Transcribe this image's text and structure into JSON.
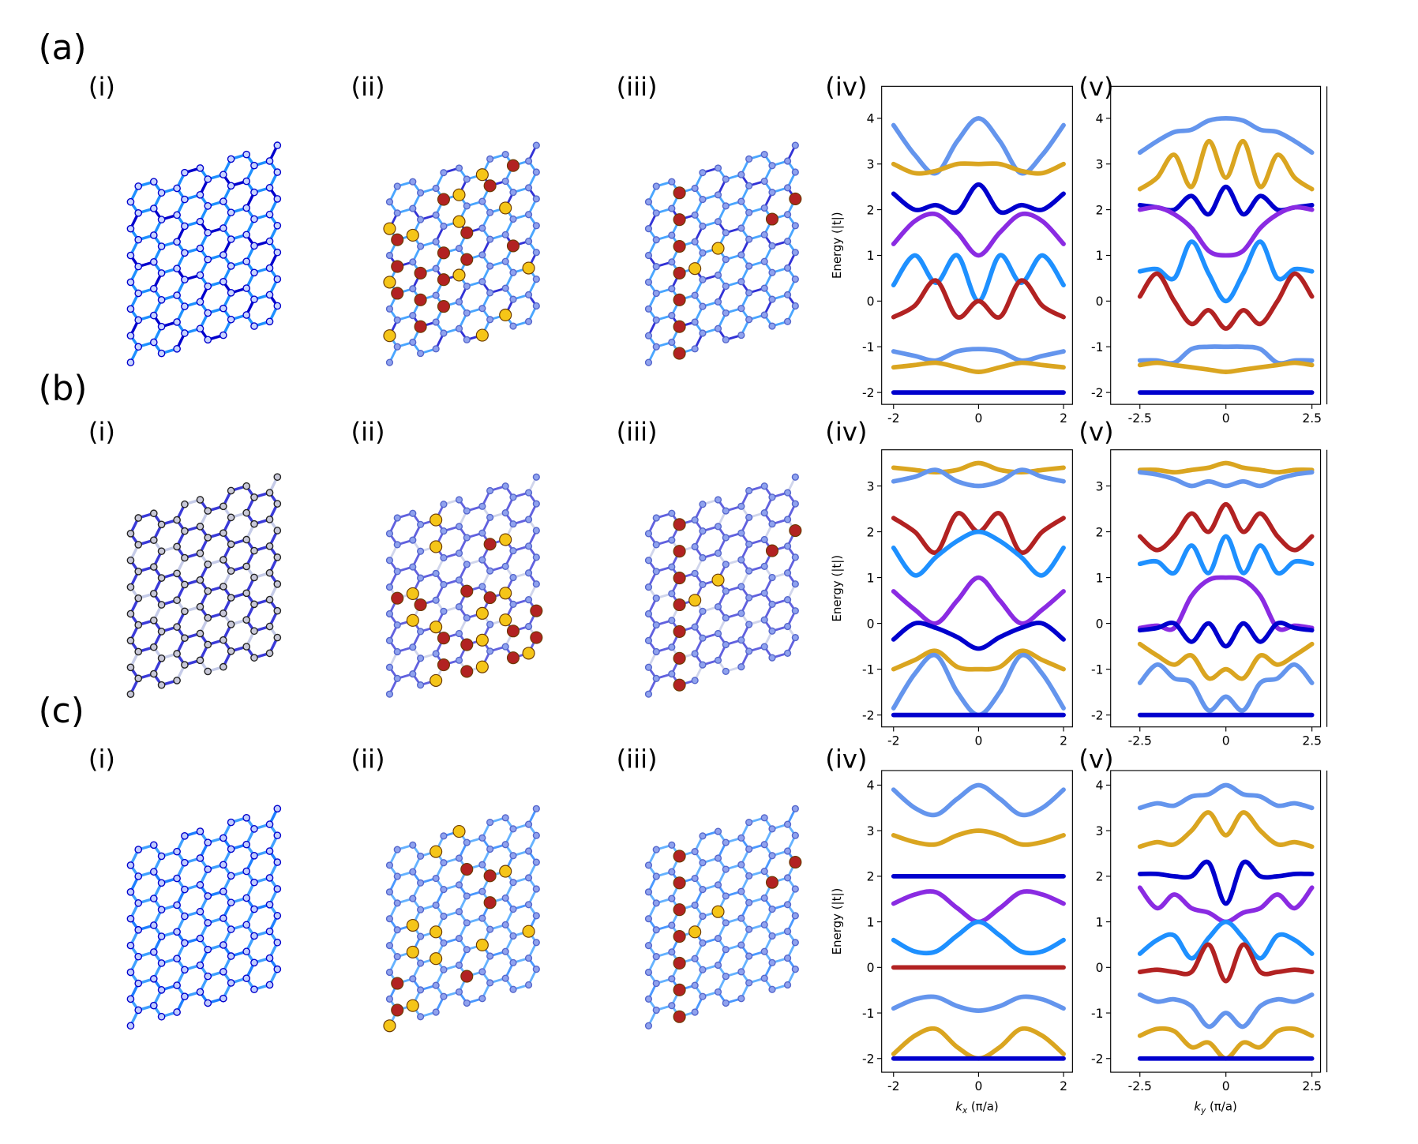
{
  "labels": {
    "rows": [
      "(a)",
      "(b)",
      "(c)"
    ],
    "panels": [
      "(i)",
      "(ii)",
      "(iii)",
      "(iv)",
      "(v)"
    ]
  },
  "chart_data": [
    {
      "type": "line",
      "ylabel": "Energy (|t|)",
      "x": [
        -2,
        -1.5,
        -1,
        -0.5,
        0,
        0.5,
        1,
        1.5,
        2
      ],
      "xlim": [
        -2.28,
        2.21
      ],
      "ylim": [
        -2.26,
        4.7
      ],
      "xticks": [
        -2,
        0,
        2
      ],
      "yticks": [
        -2,
        -1,
        0,
        1,
        2,
        3,
        4
      ],
      "series": [
        {
          "color": "#6495ed",
          "values": [
            3.85,
            3.2,
            2.8,
            3.5,
            4.0,
            3.5,
            2.8,
            3.2,
            3.85
          ]
        },
        {
          "color": "#daa520",
          "values": [
            3.0,
            2.8,
            2.85,
            3.0,
            3.0,
            3.0,
            2.85,
            2.8,
            3.0
          ]
        },
        {
          "color": "#0000cd",
          "values": [
            2.35,
            2.0,
            2.1,
            1.95,
            2.55,
            1.95,
            2.1,
            2.0,
            2.35
          ]
        },
        {
          "color": "#8a2be2",
          "values": [
            1.25,
            1.75,
            1.9,
            1.5,
            1.0,
            1.5,
            1.9,
            1.75,
            1.25
          ]
        },
        {
          "color": "#1e90ff",
          "values": [
            0.35,
            1.0,
            0.4,
            1.0,
            0.0,
            1.0,
            0.4,
            1.0,
            0.35
          ]
        },
        {
          "color": "#b22222",
          "values": [
            -0.35,
            -0.1,
            0.45,
            -0.35,
            0.0,
            -0.35,
            0.45,
            -0.1,
            -0.35
          ]
        },
        {
          "color": "#6495ed",
          "values": [
            -1.1,
            -1.2,
            -1.3,
            -1.1,
            -1.05,
            -1.1,
            -1.3,
            -1.2,
            -1.1
          ]
        },
        {
          "color": "#daa520",
          "values": [
            -1.45,
            -1.4,
            -1.35,
            -1.45,
            -1.55,
            -1.45,
            -1.35,
            -1.4,
            -1.45
          ]
        },
        {
          "color": "#0000cd",
          "values": [
            -2,
            -2,
            -2,
            -2,
            -2,
            -2,
            -2,
            -2,
            -2
          ]
        }
      ]
    },
    {
      "type": "line",
      "x": [
        -2.5,
        -2,
        -1.5,
        -1,
        -0.5,
        0,
        0.5,
        1,
        1.5,
        2,
        2.5
      ],
      "xlim": [
        -3.35,
        2.75
      ],
      "ylim": [
        -2.26,
        4.7
      ],
      "xticks": [
        -2.5,
        0,
        2.5
      ],
      "yticks": [
        -2,
        -1,
        0,
        1,
        2,
        3,
        4
      ],
      "series": [
        {
          "color": "#6495ed",
          "values": [
            3.25,
            3.5,
            3.7,
            3.75,
            3.95,
            4.0,
            3.95,
            3.75,
            3.7,
            3.5,
            3.25
          ]
        },
        {
          "color": "#daa520",
          "values": [
            2.45,
            2.7,
            3.2,
            2.5,
            3.5,
            2.7,
            3.5,
            2.5,
            3.2,
            2.7,
            2.45
          ]
        },
        {
          "color": "#0000cd",
          "values": [
            2.1,
            2.05,
            2.0,
            2.3,
            1.9,
            2.5,
            1.9,
            2.3,
            2.0,
            2.05,
            2.1
          ]
        },
        {
          "color": "#8a2be2",
          "values": [
            2.0,
            2.05,
            1.9,
            1.6,
            1.1,
            1.0,
            1.1,
            1.6,
            1.9,
            2.05,
            2.0
          ]
        },
        {
          "color": "#1e90ff",
          "values": [
            0.65,
            0.7,
            0.5,
            1.3,
            0.6,
            0.0,
            0.6,
            1.3,
            0.5,
            0.7,
            0.65
          ]
        },
        {
          "color": "#b22222",
          "values": [
            0.1,
            0.6,
            0.0,
            -0.5,
            -0.2,
            -0.6,
            -0.2,
            -0.5,
            0.0,
            0.6,
            0.1
          ]
        },
        {
          "color": "#6495ed",
          "values": [
            -1.3,
            -1.3,
            -1.35,
            -1.05,
            -1.0,
            -1.0,
            -1.0,
            -1.05,
            -1.35,
            -1.3,
            -1.3
          ]
        },
        {
          "color": "#daa520",
          "values": [
            -1.4,
            -1.35,
            -1.4,
            -1.45,
            -1.5,
            -1.55,
            -1.5,
            -1.45,
            -1.4,
            -1.35,
            -1.4
          ]
        },
        {
          "color": "#0000cd",
          "values": [
            -2,
            -2,
            -2,
            -2,
            -2,
            -2,
            -2,
            -2,
            -2,
            -2,
            -2
          ]
        }
      ]
    },
    {
      "type": "line",
      "ylabel": "Energy (|t|)",
      "x": [
        -2,
        -1.5,
        -1,
        -0.5,
        0,
        0.5,
        1,
        1.5,
        2
      ],
      "xlim": [
        -2.28,
        2.21
      ],
      "ylim": [
        -2.26,
        3.79
      ],
      "xticks": [
        -2,
        0,
        2
      ],
      "yticks": [
        -2,
        -1,
        0,
        1,
        2,
        3
      ],
      "series": [
        {
          "color": "#daa520",
          "values": [
            3.4,
            3.35,
            3.3,
            3.35,
            3.5,
            3.35,
            3.3,
            3.35,
            3.4
          ]
        },
        {
          "color": "#6495ed",
          "values": [
            3.1,
            3.2,
            3.35,
            3.1,
            3.0,
            3.1,
            3.35,
            3.2,
            3.1
          ]
        },
        {
          "color": "#b22222",
          "values": [
            2.3,
            2.0,
            1.55,
            2.4,
            2.0,
            2.4,
            1.55,
            2.0,
            2.3
          ]
        },
        {
          "color": "#1e90ff",
          "values": [
            1.65,
            1.05,
            1.45,
            1.8,
            2.0,
            1.8,
            1.45,
            1.05,
            1.65
          ]
        },
        {
          "color": "#8a2be2",
          "values": [
            0.7,
            0.3,
            0.0,
            0.5,
            1.0,
            0.5,
            0.0,
            0.3,
            0.7
          ]
        },
        {
          "color": "#0000cd",
          "values": [
            -0.35,
            0.0,
            -0.1,
            -0.3,
            -0.55,
            -0.3,
            -0.1,
            0.0,
            -0.35
          ]
        },
        {
          "color": "#daa520",
          "values": [
            -1.0,
            -0.8,
            -0.6,
            -0.95,
            -1.0,
            -0.95,
            -0.6,
            -0.8,
            -1.0
          ]
        },
        {
          "color": "#6495ed",
          "values": [
            -1.85,
            -1.1,
            -0.7,
            -1.5,
            -2.0,
            -1.5,
            -0.7,
            -1.1,
            -1.85
          ]
        },
        {
          "color": "#0000cd",
          "values": [
            -2,
            -2,
            -2,
            -2,
            -2,
            -2,
            -2,
            -2,
            -2
          ]
        }
      ]
    },
    {
      "type": "line",
      "x": [
        -2.5,
        -2,
        -1.5,
        -1,
        -0.5,
        0,
        0.5,
        1,
        1.5,
        2,
        2.5
      ],
      "xlim": [
        -3.35,
        2.75
      ],
      "ylim": [
        -2.26,
        3.79
      ],
      "xticks": [
        -2.5,
        0,
        2.5
      ],
      "yticks": [
        -2,
        -1,
        0,
        1,
        2,
        3
      ],
      "series": [
        {
          "color": "#daa520",
          "values": [
            3.35,
            3.35,
            3.3,
            3.35,
            3.4,
            3.5,
            3.4,
            3.35,
            3.3,
            3.35,
            3.35
          ]
        },
        {
          "color": "#6495ed",
          "values": [
            3.3,
            3.25,
            3.15,
            3.0,
            3.1,
            3.0,
            3.1,
            3.0,
            3.15,
            3.25,
            3.3
          ]
        },
        {
          "color": "#b22222",
          "values": [
            1.9,
            1.6,
            1.9,
            2.4,
            2.0,
            2.6,
            2.0,
            2.4,
            1.9,
            1.6,
            1.9
          ]
        },
        {
          "color": "#1e90ff",
          "values": [
            1.3,
            1.35,
            1.1,
            1.7,
            1.1,
            1.9,
            1.1,
            1.7,
            1.1,
            1.35,
            1.3
          ]
        },
        {
          "color": "#8a2be2",
          "values": [
            -0.1,
            -0.05,
            -0.1,
            0.6,
            0.95,
            1.0,
            0.95,
            0.6,
            -0.1,
            -0.05,
            -0.1
          ]
        },
        {
          "color": "#0000cd",
          "values": [
            -0.15,
            -0.1,
            0.0,
            -0.4,
            0.0,
            -0.5,
            0.0,
            -0.4,
            0.0,
            -0.1,
            -0.15
          ]
        },
        {
          "color": "#daa520",
          "values": [
            -0.45,
            -0.7,
            -0.9,
            -0.7,
            -1.2,
            -1.0,
            -1.2,
            -0.7,
            -0.9,
            -0.7,
            -0.45
          ]
        },
        {
          "color": "#6495ed",
          "values": [
            -1.3,
            -0.9,
            -1.2,
            -1.3,
            -1.9,
            -1.6,
            -1.9,
            -1.3,
            -1.2,
            -0.9,
            -1.3
          ]
        },
        {
          "color": "#0000cd",
          "values": [
            -2,
            -2,
            -2,
            -2,
            -2,
            -2,
            -2,
            -2,
            -2,
            -2,
            -2
          ]
        }
      ]
    },
    {
      "type": "line",
      "ylabel": "Energy (|t|)",
      "xlabel": {
        "symbol": "k",
        "subscript": "x",
        "unit": " (π/a)"
      },
      "x": [
        -2,
        -1.5,
        -1,
        -0.5,
        0,
        0.5,
        1,
        1.5,
        2
      ],
      "xlim": [
        -2.28,
        2.21
      ],
      "ylim": [
        -2.3,
        4.32
      ],
      "xticks": [
        -2,
        0,
        2
      ],
      "yticks": [
        -2,
        -1,
        0,
        1,
        2,
        3,
        4
      ],
      "series": [
        {
          "color": "#6495ed",
          "values": [
            3.9,
            3.5,
            3.35,
            3.7,
            4.0,
            3.7,
            3.35,
            3.5,
            3.9
          ]
        },
        {
          "color": "#daa520",
          "values": [
            2.9,
            2.75,
            2.7,
            2.9,
            3.0,
            2.9,
            2.7,
            2.75,
            2.9
          ]
        },
        {
          "color": "#0000cd",
          "values": [
            2,
            2,
            2,
            2,
            2,
            2,
            2,
            2,
            2
          ]
        },
        {
          "color": "#8a2be2",
          "values": [
            1.4,
            1.6,
            1.65,
            1.3,
            1.0,
            1.3,
            1.65,
            1.6,
            1.4
          ]
        },
        {
          "color": "#1e90ff",
          "values": [
            0.6,
            0.35,
            0.35,
            0.7,
            1.0,
            0.7,
            0.35,
            0.35,
            0.6
          ]
        },
        {
          "color": "#b22222",
          "values": [
            0,
            0,
            0,
            0,
            0,
            0,
            0,
            0,
            0
          ]
        },
        {
          "color": "#6495ed",
          "values": [
            -0.9,
            -0.7,
            -0.65,
            -0.85,
            -0.95,
            -0.85,
            -0.65,
            -0.7,
            -0.9
          ]
        },
        {
          "color": "#daa520",
          "values": [
            -1.9,
            -1.5,
            -1.35,
            -1.75,
            -2.0,
            -1.75,
            -1.35,
            -1.5,
            -1.9
          ]
        },
        {
          "color": "#0000cd",
          "values": [
            -2,
            -2,
            -2,
            -2,
            -2,
            -2,
            -2,
            -2,
            -2
          ]
        }
      ]
    },
    {
      "type": "line",
      "xlabel": {
        "symbol": "k",
        "subscript": "y",
        "unit": " (π/a)"
      },
      "x": [
        -2.5,
        -2,
        -1.5,
        -1,
        -0.5,
        0,
        0.5,
        1,
        1.5,
        2,
        2.5
      ],
      "xlim": [
        -3.35,
        2.75
      ],
      "ylim": [
        -2.3,
        4.32
      ],
      "xticks": [
        -2.5,
        0,
        2.5
      ],
      "yticks": [
        -2,
        -1,
        0,
        1,
        2,
        3,
        4
      ],
      "series": [
        {
          "color": "#6495ed",
          "values": [
            3.5,
            3.6,
            3.55,
            3.75,
            3.8,
            4.0,
            3.8,
            3.75,
            3.55,
            3.6,
            3.5
          ]
        },
        {
          "color": "#daa520",
          "values": [
            2.65,
            2.75,
            2.7,
            3.0,
            3.4,
            2.9,
            3.4,
            3.0,
            2.7,
            2.75,
            2.65
          ]
        },
        {
          "color": "#0000cd",
          "values": [
            2.05,
            2.05,
            2.0,
            2.0,
            2.3,
            1.4,
            2.3,
            2.0,
            2.0,
            2.05,
            2.05
          ]
        },
        {
          "color": "#8a2be2",
          "values": [
            1.75,
            1.3,
            1.6,
            1.3,
            1.2,
            1.0,
            1.2,
            1.3,
            1.6,
            1.3,
            1.75
          ]
        },
        {
          "color": "#1e90ff",
          "values": [
            0.3,
            0.6,
            0.7,
            0.2,
            0.65,
            1.0,
            0.65,
            0.2,
            0.7,
            0.6,
            0.3
          ]
        },
        {
          "color": "#b22222",
          "values": [
            -0.1,
            -0.05,
            -0.1,
            -0.1,
            0.5,
            -0.3,
            0.5,
            -0.1,
            -0.1,
            -0.05,
            -0.1
          ]
        },
        {
          "color": "#6495ed",
          "values": [
            -0.6,
            -0.75,
            -0.7,
            -0.85,
            -1.3,
            -1.0,
            -1.3,
            -0.85,
            -0.7,
            -0.75,
            -0.6
          ]
        },
        {
          "color": "#daa520",
          "values": [
            -1.5,
            -1.35,
            -1.4,
            -1.75,
            -1.65,
            -2.0,
            -1.65,
            -1.75,
            -1.4,
            -1.35,
            -1.5
          ]
        },
        {
          "color": "#0000cd",
          "values": [
            -2,
            -2,
            -2,
            -2,
            -2,
            -2,
            -2,
            -2,
            -2,
            -2,
            -2
          ]
        }
      ]
    }
  ]
}
